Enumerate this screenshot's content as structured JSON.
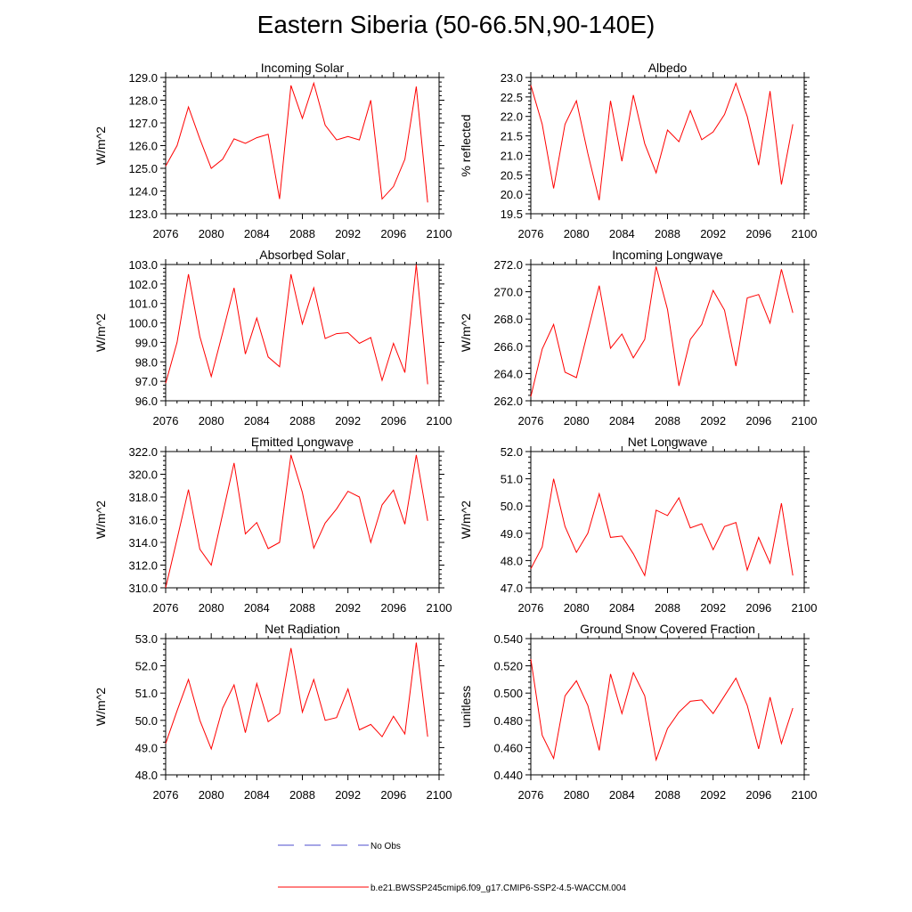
{
  "title": "Eastern Siberia (50-66.5N,90-140E)",
  "colors": {
    "model": "#ff0000",
    "obs": "#4d4dcc",
    "axis": "#000000"
  },
  "legend": {
    "obs_label": "No Obs",
    "model_label": "b.e21.BWSSP245cmip6.f09_g17.CMIP6-SSP2-4.5-WACCM.004"
  },
  "chart_data": [
    {
      "type": "line",
      "title": "Incoming Solar",
      "ylabel": "W/m^2",
      "xlim": [
        2076,
        2100
      ],
      "ylim": [
        123,
        129
      ],
      "xticks": [
        "2076",
        "2080",
        "2084",
        "2088",
        "2092",
        "2096",
        "2100"
      ],
      "yticks": [
        "123.0",
        "124.0",
        "125.0",
        "126.0",
        "127.0",
        "128.0",
        "129.0"
      ],
      "x": [
        2076,
        2077,
        2078,
        2079,
        2080,
        2081,
        2082,
        2083,
        2084,
        2085,
        2086,
        2087,
        2088,
        2089,
        2090,
        2091,
        2092,
        2093,
        2094,
        2095,
        2096,
        2097,
        2098,
        2099
      ],
      "series": [
        {
          "name": "b.e21.BWSSP245cmip6.f09_g17.CMIP6-SSP2-4.5-WACCM.004",
          "values": [
            125.1,
            126.0,
            127.7,
            126.3,
            125.0,
            125.4,
            126.3,
            126.1,
            126.35,
            126.5,
            123.65,
            128.65,
            127.2,
            128.75,
            126.9,
            126.25,
            126.4,
            126.25,
            128.0,
            123.65,
            124.2,
            125.4,
            128.6,
            123.5
          ]
        }
      ]
    },
    {
      "type": "line",
      "title": "Albedo",
      "ylabel": "% reflected",
      "xlim": [
        2076,
        2100
      ],
      "ylim": [
        19.5,
        23.0
      ],
      "xticks": [
        "2076",
        "2080",
        "2084",
        "2088",
        "2092",
        "2096",
        "2100"
      ],
      "yticks": [
        "19.5",
        "20.0",
        "20.5",
        "21.0",
        "21.5",
        "22.0",
        "22.5",
        "23.0"
      ],
      "x": [
        2076,
        2077,
        2078,
        2079,
        2080,
        2081,
        2082,
        2083,
        2084,
        2085,
        2086,
        2087,
        2088,
        2089,
        2090,
        2091,
        2092,
        2093,
        2094,
        2095,
        2096,
        2097,
        2098,
        2099
      ],
      "series": [
        {
          "name": "b.e21.BWSSP245cmip6.f09_g17.CMIP6-SSP2-4.5-WACCM.004",
          "values": [
            22.8,
            21.8,
            20.15,
            21.8,
            22.4,
            21.05,
            19.85,
            22.4,
            20.85,
            22.55,
            21.3,
            20.55,
            21.65,
            21.35,
            22.15,
            21.4,
            21.6,
            22.05,
            22.85,
            22.0,
            20.75,
            22.65,
            20.25,
            21.8
          ]
        }
      ]
    },
    {
      "type": "line",
      "title": "Absorbed Solar",
      "ylabel": "W/m^2",
      "xlim": [
        2076,
        2100
      ],
      "ylim": [
        96,
        103
      ],
      "xticks": [
        "2076",
        "2080",
        "2084",
        "2088",
        "2092",
        "2096",
        "2100"
      ],
      "yticks": [
        "96.0",
        "97.0",
        "98.0",
        "99.0",
        "100.0",
        "101.0",
        "102.0",
        "103.0"
      ],
      "x": [
        2076,
        2077,
        2078,
        2079,
        2080,
        2081,
        2082,
        2083,
        2084,
        2085,
        2086,
        2087,
        2088,
        2089,
        2090,
        2091,
        2092,
        2093,
        2094,
        2095,
        2096,
        2097,
        2098,
        2099
      ],
      "series": [
        {
          "name": "b.e21.BWSSP245cmip6.f09_g17.CMIP6-SSP2-4.5-WACCM.004",
          "values": [
            96.9,
            99.0,
            102.5,
            99.3,
            97.25,
            99.5,
            101.8,
            98.4,
            100.25,
            98.25,
            97.75,
            102.5,
            99.95,
            101.8,
            99.2,
            99.45,
            99.5,
            98.95,
            99.25,
            97.05,
            98.95,
            97.45,
            103.0,
            96.85
          ]
        }
      ]
    },
    {
      "type": "line",
      "title": "Incoming Longwave",
      "ylabel": "W/m^2",
      "xlim": [
        2076,
        2100
      ],
      "ylim": [
        262,
        272
      ],
      "xticks": [
        "2076",
        "2080",
        "2084",
        "2088",
        "2092",
        "2096",
        "2100"
      ],
      "yticks": [
        "262.0",
        "264.0",
        "266.0",
        "268.0",
        "270.0",
        "272.0"
      ],
      "x": [
        2076,
        2077,
        2078,
        2079,
        2080,
        2081,
        2082,
        2083,
        2084,
        2085,
        2086,
        2087,
        2088,
        2089,
        2090,
        2091,
        2092,
        2093,
        2094,
        2095,
        2096,
        2097,
        2098,
        2099
      ],
      "series": [
        {
          "name": "b.e21.BWSSP245cmip6.f09_g17.CMIP6-SSP2-4.5-WACCM.004",
          "values": [
            262.3,
            265.8,
            267.6,
            264.1,
            263.7,
            267.1,
            270.45,
            265.85,
            266.9,
            265.15,
            266.5,
            271.85,
            268.7,
            263.1,
            266.5,
            267.6,
            270.1,
            268.65,
            264.55,
            269.55,
            269.8,
            267.7,
            271.65,
            268.45
          ]
        }
      ]
    },
    {
      "type": "line",
      "title": "Emitted Longwave",
      "ylabel": "W/m^2",
      "xlim": [
        2076,
        2100
      ],
      "ylim": [
        310,
        322
      ],
      "xticks": [
        "2076",
        "2080",
        "2084",
        "2088",
        "2092",
        "2096",
        "2100"
      ],
      "yticks": [
        "310.0",
        "312.0",
        "314.0",
        "316.0",
        "318.0",
        "320.0",
        "322.0"
      ],
      "x": [
        2076,
        2077,
        2078,
        2079,
        2080,
        2081,
        2082,
        2083,
        2084,
        2085,
        2086,
        2087,
        2088,
        2089,
        2090,
        2091,
        2092,
        2093,
        2094,
        2095,
        2096,
        2097,
        2098,
        2099
      ],
      "series": [
        {
          "name": "b.e21.BWSSP245cmip6.f09_g17.CMIP6-SSP2-4.5-WACCM.004",
          "values": [
            310.0,
            314.3,
            318.65,
            313.4,
            312.0,
            316.5,
            321.0,
            314.75,
            315.75,
            313.45,
            314.0,
            321.7,
            318.4,
            313.5,
            315.7,
            316.95,
            318.5,
            318.0,
            314.0,
            317.3,
            318.6,
            315.6,
            321.7,
            315.9
          ]
        }
      ]
    },
    {
      "type": "line",
      "title": "Net Longwave",
      "ylabel": "W/m^2",
      "xlim": [
        2076,
        2100
      ],
      "ylim": [
        47,
        52
      ],
      "xticks": [
        "2076",
        "2080",
        "2084",
        "2088",
        "2092",
        "2096",
        "2100"
      ],
      "yticks": [
        "47.0",
        "48.0",
        "49.0",
        "50.0",
        "51.0",
        "52.0"
      ],
      "x": [
        2076,
        2077,
        2078,
        2079,
        2080,
        2081,
        2082,
        2083,
        2084,
        2085,
        2086,
        2087,
        2088,
        2089,
        2090,
        2091,
        2092,
        2093,
        2094,
        2095,
        2096,
        2097,
        2098,
        2099
      ],
      "series": [
        {
          "name": "b.e21.BWSSP245cmip6.f09_g17.CMIP6-SSP2-4.5-WACCM.004",
          "values": [
            47.7,
            48.5,
            51.0,
            49.25,
            48.3,
            49.0,
            50.45,
            48.85,
            48.9,
            48.25,
            47.45,
            49.85,
            49.65,
            50.3,
            49.2,
            49.35,
            48.4,
            49.25,
            49.4,
            47.65,
            48.85,
            47.9,
            50.1,
            47.45
          ]
        }
      ]
    },
    {
      "type": "line",
      "title": "Net Radiation",
      "ylabel": "W/m^2",
      "xlim": [
        2076,
        2100
      ],
      "ylim": [
        48,
        53
      ],
      "xticks": [
        "2076",
        "2080",
        "2084",
        "2088",
        "2092",
        "2096",
        "2100"
      ],
      "yticks": [
        "48.0",
        "49.0",
        "50.0",
        "51.0",
        "52.0",
        "53.0"
      ],
      "x": [
        2076,
        2077,
        2078,
        2079,
        2080,
        2081,
        2082,
        2083,
        2084,
        2085,
        2086,
        2087,
        2088,
        2089,
        2090,
        2091,
        2092,
        2093,
        2094,
        2095,
        2096,
        2097,
        2098,
        2099
      ],
      "series": [
        {
          "name": "b.e21.BWSSP245cmip6.f09_g17.CMIP6-SSP2-4.5-WACCM.004",
          "values": [
            49.15,
            50.35,
            51.5,
            50.0,
            48.95,
            50.45,
            51.3,
            49.55,
            51.35,
            49.95,
            50.25,
            52.65,
            50.3,
            51.5,
            50.0,
            50.1,
            51.15,
            49.65,
            49.85,
            49.4,
            50.15,
            49.5,
            52.85,
            49.4
          ]
        }
      ]
    },
    {
      "type": "line",
      "title": "Ground Snow Covered Fraction",
      "ylabel": "unitless",
      "xlim": [
        2076,
        2100
      ],
      "ylim": [
        0.44,
        0.54
      ],
      "xticks": [
        "2076",
        "2080",
        "2084",
        "2088",
        "2092",
        "2096",
        "2100"
      ],
      "yticks": [
        "0.440",
        "0.460",
        "0.480",
        "0.500",
        "0.520",
        "0.540"
      ],
      "x": [
        2076,
        2077,
        2078,
        2079,
        2080,
        2081,
        2082,
        2083,
        2084,
        2085,
        2086,
        2087,
        2088,
        2089,
        2090,
        2091,
        2092,
        2093,
        2094,
        2095,
        2096,
        2097,
        2098,
        2099
      ],
      "series": [
        {
          "name": "b.e21.BWSSP245cmip6.f09_g17.CMIP6-SSP2-4.5-WACCM.004",
          "values": [
            0.525,
            0.469,
            0.452,
            0.498,
            0.509,
            0.491,
            0.458,
            0.514,
            0.485,
            0.515,
            0.498,
            0.451,
            0.474,
            0.486,
            0.494,
            0.495,
            0.485,
            0.498,
            0.511,
            0.491,
            0.459,
            0.497,
            0.463,
            0.489
          ]
        }
      ]
    }
  ]
}
